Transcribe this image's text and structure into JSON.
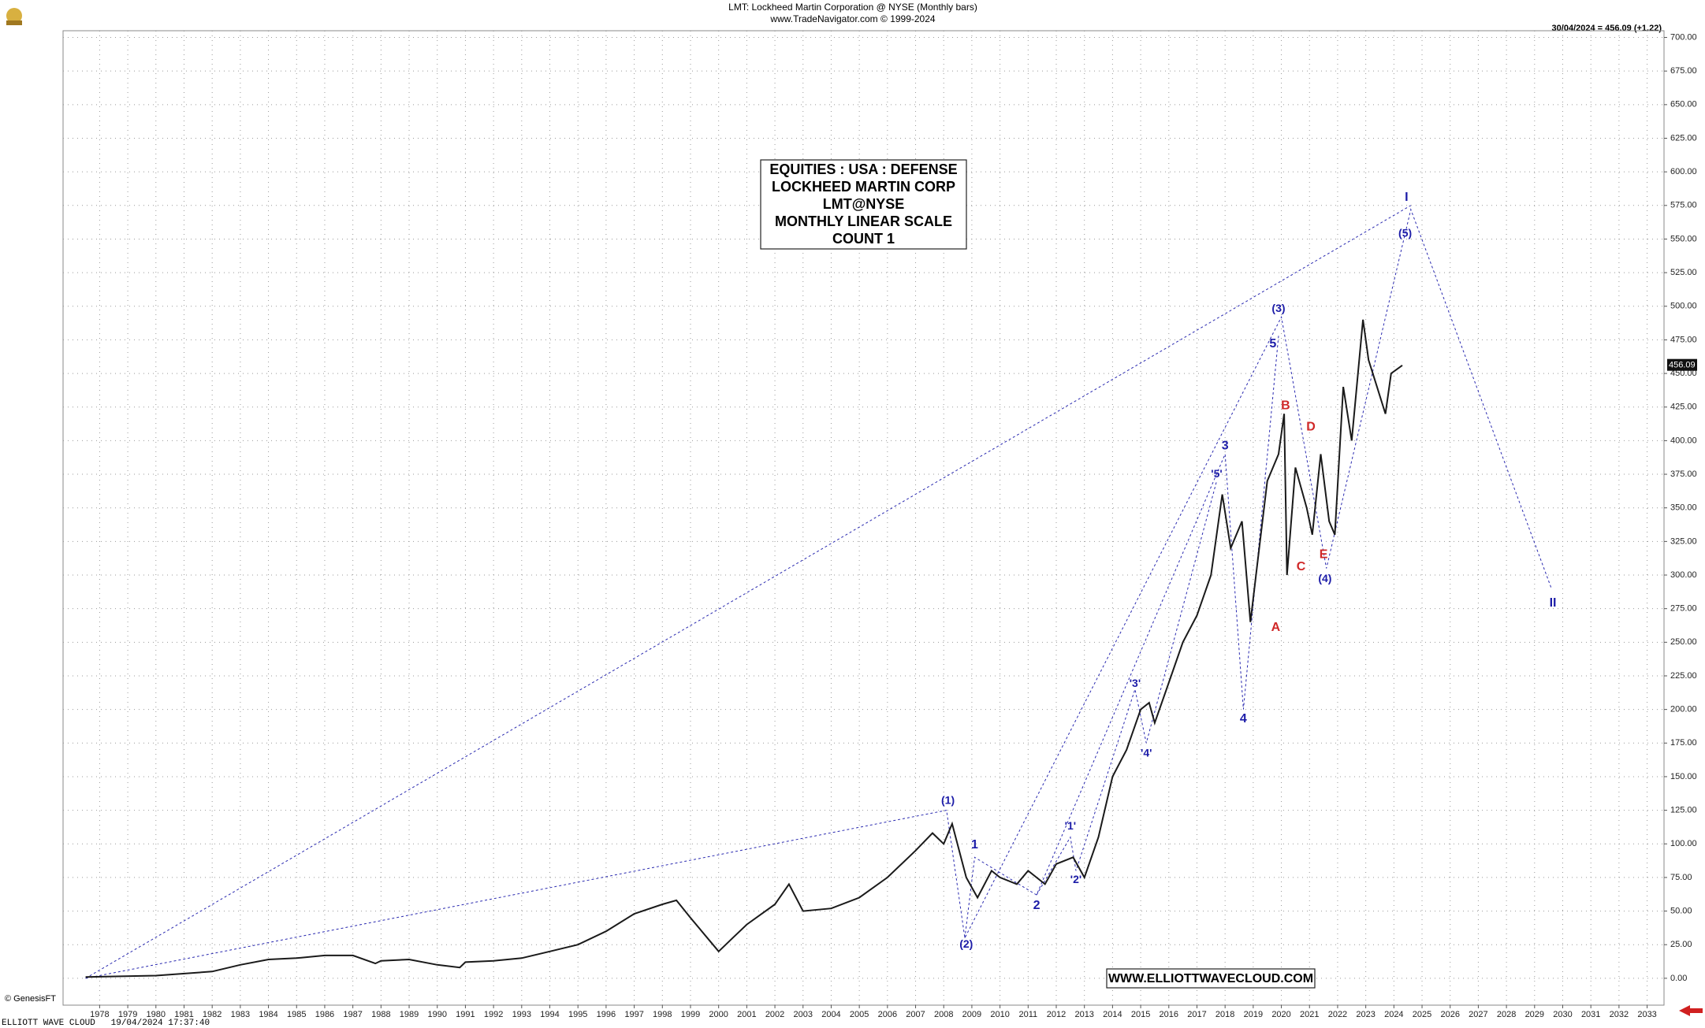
{
  "chart_data": {
    "type": "line",
    "title": "LMT:  Lockheed Martin Corporation @ NYSE  (Monthly bars)",
    "subtitle": "www.TradeNavigator.com © 1999-2024",
    "last_price_note": "30/04/2024 = 456.09 (+1.22)",
    "last_price_label": "456.09",
    "last_price": 456.09,
    "info_box": [
      "EQUITIES : USA : DEFENSE",
      "LOCKHEED MARTIN CORP",
      "LMT@NYSE",
      "MONTHLY LINEAR SCALE",
      "COUNT 1"
    ],
    "website": "WWW.ELLIOTTWAVECLOUD.COM",
    "copyright": "© GenesisFT",
    "footer": "ELLIOTT WAVE CLOUD   19/04/2024 17:37:40",
    "grid": true,
    "xlim": [
      1976.7,
      2033.6
    ],
    "ylim": [
      -20,
      705
    ],
    "xticks": [
      1978,
      1979,
      1980,
      1981,
      1982,
      1983,
      1984,
      1985,
      1986,
      1987,
      1988,
      1989,
      1990,
      1991,
      1992,
      1993,
      1994,
      1995,
      1996,
      1997,
      1998,
      1999,
      2000,
      2001,
      2002,
      2003,
      2004,
      2005,
      2006,
      2007,
      2008,
      2009,
      2010,
      2011,
      2012,
      2013,
      2014,
      2015,
      2016,
      2017,
      2018,
      2019,
      2020,
      2021,
      2022,
      2023,
      2024,
      2025,
      2026,
      2027,
      2028,
      2029,
      2030,
      2031,
      2032,
      2033
    ],
    "yticks": [
      {
        "value": 0,
        "label": "0.00"
      },
      {
        "value": 25,
        "label": "25.00"
      },
      {
        "value": 50,
        "label": "50.00"
      },
      {
        "value": 75,
        "label": "75.00"
      },
      {
        "value": 100,
        "label": "100.00"
      },
      {
        "value": 125,
        "label": "125.00"
      },
      {
        "value": 150,
        "label": "150.00"
      },
      {
        "value": 175,
        "label": "175.00"
      },
      {
        "value": 200,
        "label": "200.00"
      },
      {
        "value": 225,
        "label": "225.00"
      },
      {
        "value": 250,
        "label": "250.00"
      },
      {
        "value": 275,
        "label": "275.00"
      },
      {
        "value": 300,
        "label": "300.00"
      },
      {
        "value": 325,
        "label": "325.00"
      },
      {
        "value": 350,
        "label": "350.00"
      },
      {
        "value": 375,
        "label": "375.00"
      },
      {
        "value": 400,
        "label": "400.00"
      },
      {
        "value": 425,
        "label": "425.00"
      },
      {
        "value": 450,
        "label": "450.00"
      },
      {
        "value": 475,
        "label": "475.00"
      },
      {
        "value": 500,
        "label": "500.00"
      },
      {
        "value": 525,
        "label": "525.00"
      },
      {
        "value": 550,
        "label": "550.00"
      },
      {
        "value": 575,
        "label": "575.00"
      },
      {
        "value": 600,
        "label": "600.00"
      },
      {
        "value": 625,
        "label": "625.00"
      },
      {
        "value": 650,
        "label": "650.00"
      },
      {
        "value": 675,
        "label": "675.00"
      },
      {
        "value": 700,
        "label": "700.00"
      }
    ],
    "x": [
      1977.5,
      1980,
      1982,
      1983,
      1984,
      1985,
      1986,
      1987,
      1987.8,
      1988,
      1989,
      1990,
      1990.8,
      1991,
      1992,
      1993,
      1994,
      1995,
      1996,
      1997,
      1998,
      1998.5,
      1999,
      1999.8,
      2000,
      2000.5,
      2001,
      2002,
      2002.5,
      2003,
      2004,
      2005,
      2006,
      2007,
      2007.6,
      2008,
      2008.3,
      2008.8,
      2009.2,
      2009.7,
      2010,
      2010.6,
      2011,
      2011.6,
      2012,
      2012.6,
      2013,
      2013.5,
      2014,
      2014.5,
      2015,
      2015.3,
      2015.5,
      2016,
      2016.5,
      2017,
      2017.5,
      2017.9,
      2018.2,
      2018.6,
      2018.9,
      2019.1,
      2019.5,
      2019.9,
      2020.1,
      2020.2,
      2020.5,
      2020.9,
      2021.1,
      2021.4,
      2021.7,
      2021.9,
      2022.2,
      2022.5,
      2022.9,
      2023.1,
      2023.4,
      2023.7,
      2023.9,
      2024.3
    ],
    "series": [
      {
        "name": "LMT",
        "color": "#1a1a1a",
        "values": [
          1,
          2,
          5,
          10,
          14,
          15,
          17,
          17,
          11,
          13,
          14,
          10,
          8,
          12,
          13,
          15,
          20,
          25,
          35,
          48,
          55,
          58,
          45,
          25,
          20,
          30,
          40,
          55,
          70,
          50,
          52,
          60,
          75,
          95,
          108,
          100,
          115,
          75,
          60,
          80,
          75,
          70,
          80,
          70,
          85,
          90,
          75,
          105,
          150,
          170,
          200,
          205,
          190,
          220,
          250,
          270,
          300,
          360,
          320,
          340,
          265,
          300,
          370,
          390,
          420,
          300,
          380,
          350,
          330,
          390,
          340,
          330,
          440,
          400,
          490,
          460,
          440,
          420,
          450,
          456
        ]
      }
    ],
    "wave_labels": [
      {
        "text": "(1)",
        "x": 2008.15,
        "y": 132,
        "color": "#1c1ca8"
      },
      {
        "text": "1",
        "x": 2009.1,
        "y": 99,
        "color": "#1c1ca8"
      },
      {
        "text": "(2)",
        "x": 2008.8,
        "y": 25,
        "color": "#1c1ca8"
      },
      {
        "text": "2",
        "x": 2011.3,
        "y": 54,
        "color": "#1c1ca8"
      },
      {
        "text": "'1'",
        "x": 2012.5,
        "y": 113,
        "color": "#1c1ca8"
      },
      {
        "text": "'2'",
        "x": 2012.7,
        "y": 73,
        "color": "#1c1ca8"
      },
      {
        "text": "'3'",
        "x": 2014.8,
        "y": 219,
        "color": "#1c1ca8"
      },
      {
        "text": "'4'",
        "x": 2015.2,
        "y": 167,
        "color": "#1c1ca8"
      },
      {
        "text": "'5'",
        "x": 2017.7,
        "y": 375,
        "color": "#1c1ca8"
      },
      {
        "text": "3",
        "x": 2018.0,
        "y": 396,
        "color": "#1c1ca8"
      },
      {
        "text": "4",
        "x": 2018.65,
        "y": 193,
        "color": "#1c1ca8"
      },
      {
        "text": "5",
        "x": 2019.7,
        "y": 472,
        "color": "#1c1ca8"
      },
      {
        "text": "(3)",
        "x": 2019.9,
        "y": 498,
        "color": "#1c1ca8"
      },
      {
        "text": "A",
        "x": 2019.8,
        "y": 261,
        "color": "#d02828"
      },
      {
        "text": "B",
        "x": 2020.15,
        "y": 426,
        "color": "#d02828"
      },
      {
        "text": "C",
        "x": 2020.7,
        "y": 306,
        "color": "#d02828"
      },
      {
        "text": "D",
        "x": 2021.05,
        "y": 410,
        "color": "#d02828"
      },
      {
        "text": "E",
        "x": 2021.5,
        "y": 315,
        "color": "#d02828"
      },
      {
        "text": "(4)",
        "x": 2021.55,
        "y": 297,
        "color": "#1c1ca8"
      },
      {
        "text": "(5)",
        "x": 2024.4,
        "y": 554,
        "color": "#1c1ca8"
      },
      {
        "text": "I",
        "x": 2024.45,
        "y": 581,
        "color": "#1c1ca8"
      },
      {
        "text": "II",
        "x": 2029.65,
        "y": 279,
        "color": "#1c1ca8"
      }
    ],
    "wave_lines": [
      {
        "x": [
          1977.5,
          2008.1,
          2008.75,
          2020,
          2021.6,
          2024.6,
          2029.6
        ],
        "y": [
          0,
          125,
          30,
          492,
          305,
          572,
          290
        ]
      },
      {
        "x": [
          1977.5,
          2024.6
        ],
        "y": [
          0,
          575
        ]
      },
      {
        "x": [
          2008.75,
          2009.1,
          2011.3,
          2018,
          2018.65,
          2019.9
        ],
        "y": [
          30,
          90,
          62,
          390,
          200,
          478
        ]
      },
      {
        "x": [
          2011.3,
          2012.5,
          2012.7,
          2014.8,
          2015.2,
          2017.7
        ],
        "y": [
          62,
          105,
          80,
          215,
          175,
          370
        ]
      }
    ]
  }
}
